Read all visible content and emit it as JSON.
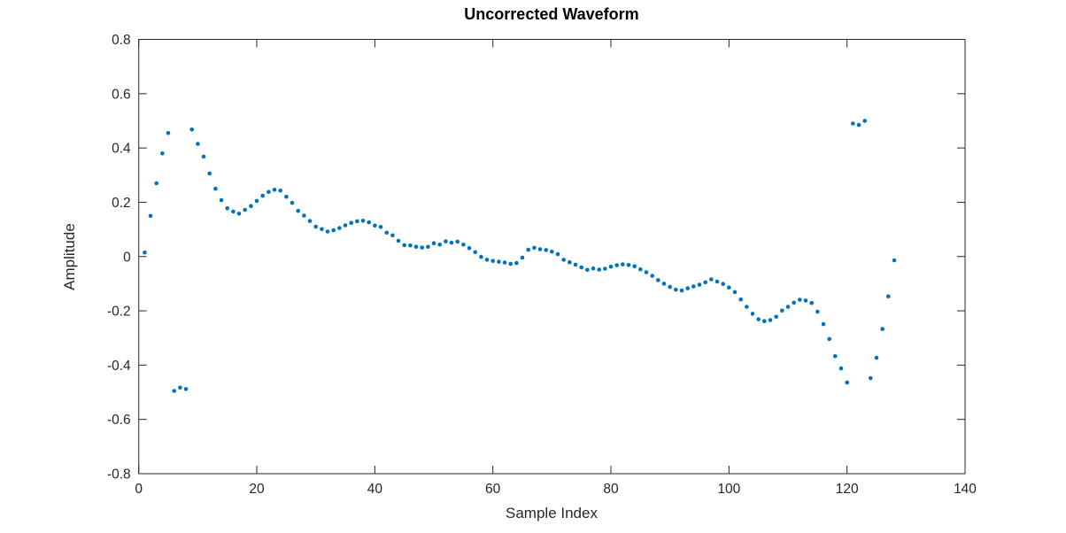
{
  "chart_data": {
    "type": "scatter",
    "title": "Uncorrected Waveform",
    "xlabel": "Sample Index",
    "ylabel": "Amplitude",
    "xlim": [
      0,
      140
    ],
    "ylim": [
      -0.8,
      0.8
    ],
    "xticks": [
      0,
      20,
      40,
      60,
      80,
      100,
      120,
      140
    ],
    "yticks": [
      -0.8,
      -0.6,
      -0.4,
      -0.2,
      0,
      0.2,
      0.4,
      0.6,
      0.8
    ],
    "grid": false,
    "legend": null,
    "marker_style": "dot",
    "marker_color": "#0072BD",
    "axis_color": "#262626",
    "background_color": "#ffffff",
    "x": [
      1,
      2,
      3,
      4,
      5,
      6,
      7,
      8,
      9,
      10,
      11,
      12,
      13,
      14,
      15,
      16,
      17,
      18,
      19,
      20,
      21,
      22,
      23,
      24,
      25,
      26,
      27,
      28,
      29,
      30,
      31,
      32,
      33,
      34,
      35,
      36,
      37,
      38,
      39,
      40,
      41,
      42,
      43,
      44,
      45,
      46,
      47,
      48,
      49,
      50,
      51,
      52,
      53,
      54,
      55,
      56,
      57,
      58,
      59,
      60,
      61,
      62,
      63,
      64,
      65,
      66,
      67,
      68,
      69,
      70,
      71,
      72,
      73,
      74,
      75,
      76,
      77,
      78,
      79,
      80,
      81,
      82,
      83,
      84,
      85,
      86,
      87,
      88,
      89,
      90,
      91,
      92,
      93,
      94,
      95,
      96,
      97,
      98,
      99,
      100,
      101,
      102,
      103,
      104,
      105,
      106,
      107,
      108,
      109,
      110,
      111,
      112,
      113,
      114,
      115,
      116,
      117,
      118,
      119,
      120,
      121,
      122,
      123,
      124,
      125,
      126,
      127,
      128
    ],
    "y": [
      0.015,
      0.15,
      0.27,
      0.38,
      0.455,
      -0.495,
      -0.483,
      -0.488,
      0.468,
      0.415,
      0.368,
      0.306,
      0.25,
      0.208,
      0.178,
      0.166,
      0.158,
      0.172,
      0.186,
      0.205,
      0.224,
      0.238,
      0.246,
      0.243,
      0.22,
      0.198,
      0.168,
      0.151,
      0.131,
      0.11,
      0.101,
      0.092,
      0.097,
      0.105,
      0.115,
      0.124,
      0.13,
      0.132,
      0.126,
      0.114,
      0.109,
      0.088,
      0.078,
      0.058,
      0.042,
      0.041,
      0.036,
      0.033,
      0.036,
      0.049,
      0.044,
      0.056,
      0.051,
      0.055,
      0.044,
      0.031,
      0.016,
      -0.001,
      -0.012,
      -0.016,
      -0.019,
      -0.022,
      -0.027,
      -0.024,
      -0.004,
      0.025,
      0.032,
      0.027,
      0.024,
      0.018,
      0.009,
      -0.012,
      -0.021,
      -0.03,
      -0.04,
      -0.049,
      -0.044,
      -0.048,
      -0.045,
      -0.037,
      -0.032,
      -0.029,
      -0.031,
      -0.036,
      -0.047,
      -0.058,
      -0.071,
      -0.087,
      -0.1,
      -0.112,
      -0.122,
      -0.125,
      -0.117,
      -0.11,
      -0.104,
      -0.095,
      -0.084,
      -0.092,
      -0.101,
      -0.114,
      -0.131,
      -0.158,
      -0.185,
      -0.211,
      -0.231,
      -0.238,
      -0.234,
      -0.222,
      -0.199,
      -0.185,
      -0.17,
      -0.159,
      -0.162,
      -0.171,
      -0.203,
      -0.249,
      -0.304,
      -0.367,
      -0.412,
      -0.464,
      0.49,
      0.485,
      0.5,
      -0.448,
      -0.373,
      -0.267,
      -0.147,
      -0.014
    ]
  }
}
